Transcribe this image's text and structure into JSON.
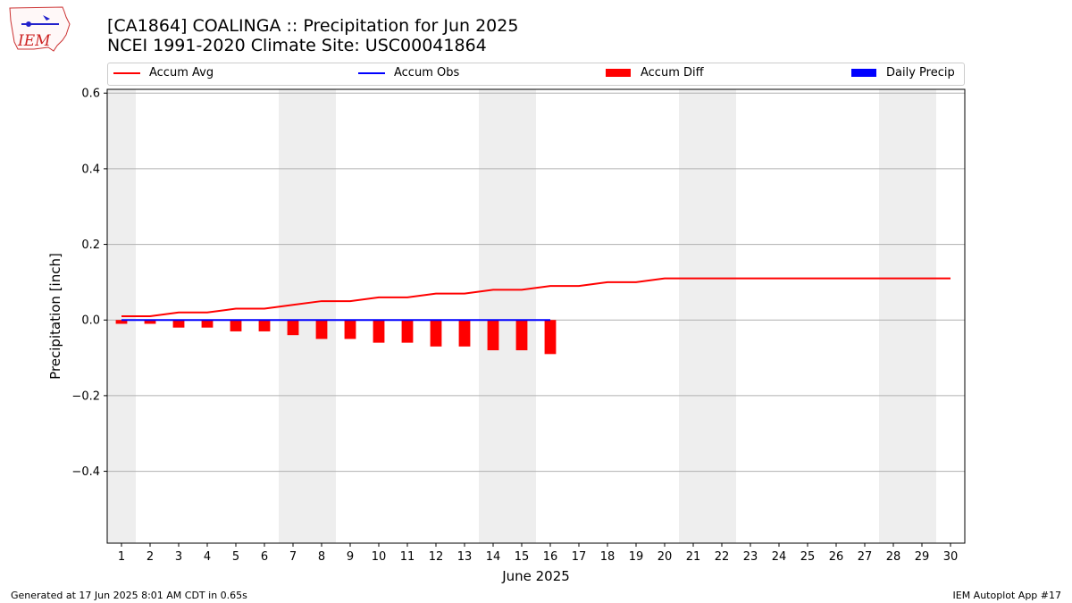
{
  "header": {
    "title_line1": "[CA1864] COALINGA :: Precipitation for Jun 2025",
    "title_line2": "NCEI 1991-2020 Climate Site: USC00041864",
    "logo_text": "IEM"
  },
  "footer": {
    "left": "Generated at 17 Jun 2025 8:01 AM CDT in 0.65s",
    "right": "IEM Autoplot App #17"
  },
  "legend": {
    "items": [
      {
        "label": "Accum Avg",
        "kind": "line",
        "color": "#ff0000"
      },
      {
        "label": "Accum Obs",
        "kind": "line",
        "color": "#0000ff"
      },
      {
        "label": "Accum Diff",
        "kind": "rect",
        "color": "#ff0000"
      },
      {
        "label": "Daily Precip",
        "kind": "rect",
        "color": "#0000ff"
      }
    ]
  },
  "chart_data": {
    "type": "bar",
    "xlabel": "June 2025",
    "ylabel": "Precipitation [inch]",
    "x_days": [
      1,
      2,
      3,
      4,
      5,
      6,
      7,
      8,
      9,
      10,
      11,
      12,
      13,
      14,
      15,
      16,
      17,
      18,
      19,
      20,
      21,
      22,
      23,
      24,
      25,
      26,
      27,
      28,
      29,
      30
    ],
    "xlim": [
      0.5,
      30.5
    ],
    "ylim": [
      -0.59,
      0.61
    ],
    "yticks": [
      0.6,
      0.4,
      0.2,
      0.0,
      -0.2,
      -0.4
    ],
    "ytick_labels": [
      "0.6",
      "0.4",
      "0.2",
      "0.0",
      "−0.2",
      "−0.4"
    ],
    "grid": true,
    "legend_position": "top",
    "weekend_shading_days": [
      1,
      7,
      8,
      14,
      15,
      21,
      22,
      28,
      29
    ],
    "weekend_color": "#eeeeee",
    "series": [
      {
        "name": "Accum Avg",
        "kind": "line",
        "color": "#ff0000",
        "x": [
          1,
          2,
          3,
          4,
          5,
          6,
          7,
          8,
          9,
          10,
          11,
          12,
          13,
          14,
          15,
          16,
          17,
          18,
          19,
          20,
          21,
          22,
          23,
          24,
          25,
          26,
          27,
          28,
          29,
          30
        ],
        "values": [
          0.01,
          0.01,
          0.02,
          0.02,
          0.03,
          0.03,
          0.04,
          0.05,
          0.05,
          0.06,
          0.06,
          0.07,
          0.07,
          0.08,
          0.08,
          0.09,
          0.09,
          0.1,
          0.1,
          0.11,
          0.11,
          0.11,
          0.11,
          0.11,
          0.11,
          0.11,
          0.11,
          0.11,
          0.11,
          0.11
        ]
      },
      {
        "name": "Accum Obs",
        "kind": "line",
        "color": "#0000ff",
        "x": [
          1,
          2,
          3,
          4,
          5,
          6,
          7,
          8,
          9,
          10,
          11,
          12,
          13,
          14,
          15,
          16
        ],
        "values": [
          0,
          0,
          0,
          0,
          0,
          0,
          0,
          0,
          0,
          0,
          0,
          0,
          0,
          0,
          0,
          0
        ]
      },
      {
        "name": "Accum Diff",
        "kind": "bar",
        "color": "#ff0000",
        "x": [
          1,
          2,
          3,
          4,
          5,
          6,
          7,
          8,
          9,
          10,
          11,
          12,
          13,
          14,
          15,
          16
        ],
        "values": [
          -0.01,
          -0.01,
          -0.02,
          -0.02,
          -0.03,
          -0.03,
          -0.04,
          -0.05,
          -0.05,
          -0.06,
          -0.06,
          -0.07,
          -0.07,
          -0.08,
          -0.08,
          -0.09
        ]
      },
      {
        "name": "Daily Precip",
        "kind": "bar",
        "color": "#0000ff",
        "x": [
          1,
          2,
          3,
          4,
          5,
          6,
          7,
          8,
          9,
          10,
          11,
          12,
          13,
          14,
          15,
          16
        ],
        "values": [
          0,
          0,
          0,
          0,
          0,
          0,
          0,
          0,
          0,
          0,
          0,
          0,
          0,
          0,
          0,
          0
        ]
      }
    ]
  }
}
